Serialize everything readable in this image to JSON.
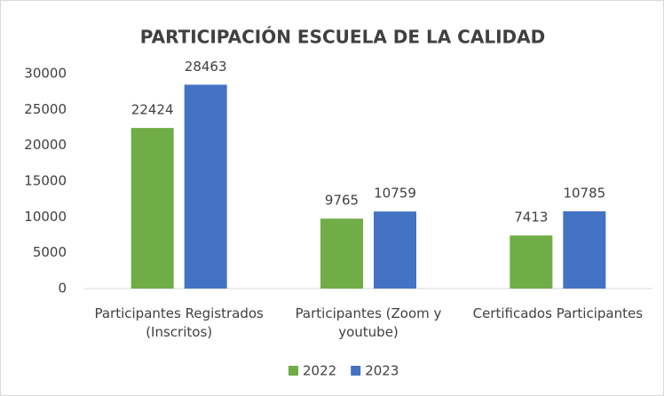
{
  "chart_data": {
    "type": "bar",
    "title": "PARTICIPACIÓN ESCUELA DE LA CALIDAD",
    "categories": [
      "Participantes Registrados (Inscritos)",
      "Participantes (Zoom y youtube)",
      "Certificados Participantes"
    ],
    "series": [
      {
        "name": "2022",
        "color": "#70ad47",
        "values": [
          22424,
          9765,
          7413
        ]
      },
      {
        "name": "2023",
        "color": "#4472c4",
        "values": [
          28463,
          10759,
          10785
        ]
      }
    ],
    "ylim": [
      0,
      30000
    ],
    "yticks": [
      0,
      5000,
      10000,
      15000,
      20000,
      25000,
      30000
    ],
    "grid": false,
    "legend": "bottom"
  }
}
